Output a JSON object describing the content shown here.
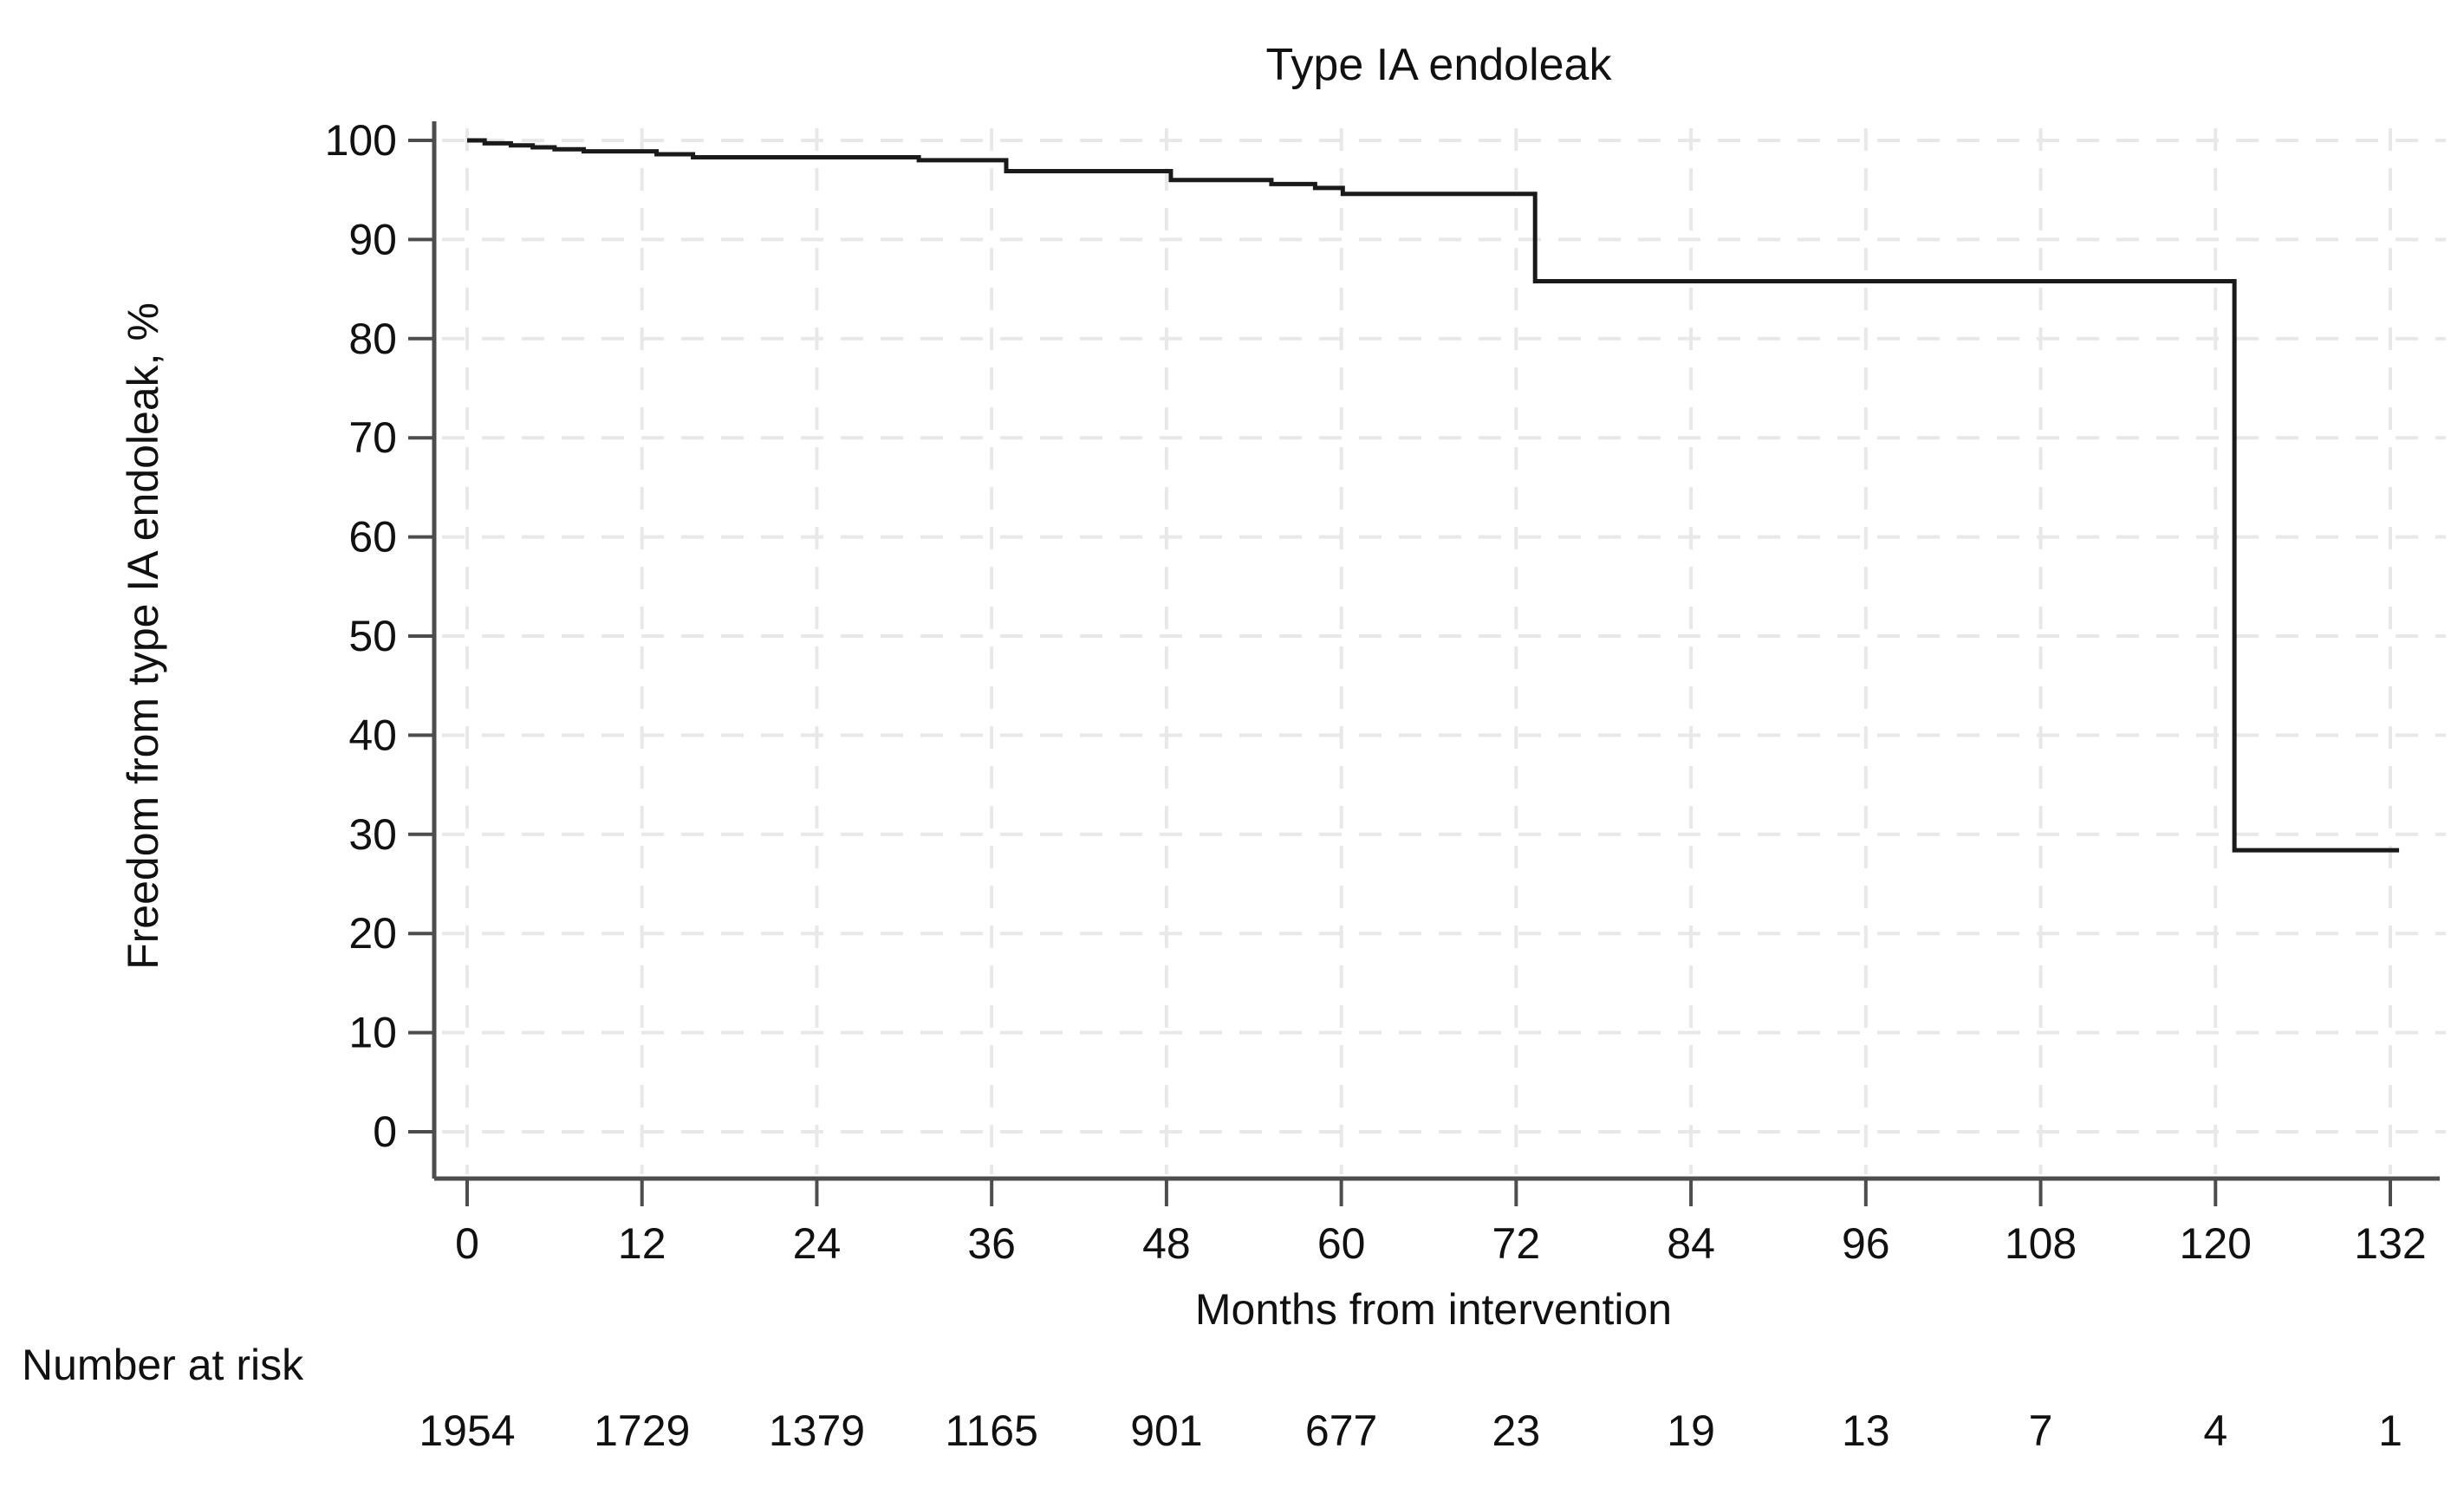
{
  "page": {
    "background": "#ffffff"
  },
  "chart_data": {
    "type": "line",
    "subtype": "kaplan-meier-step-curve",
    "title": "Type IA endoleak",
    "xlabel": "Months from intervention",
    "ylabel": "Freedom from type IA endoleak, %",
    "xlim": [
      0,
      132
    ],
    "ylim": [
      0,
      100
    ],
    "x_ticks": [
      0,
      12,
      24,
      36,
      48,
      60,
      72,
      84,
      96,
      108,
      120,
      132
    ],
    "y_ticks": [
      0,
      10,
      20,
      30,
      40,
      50,
      60,
      70,
      80,
      90,
      100
    ],
    "grid": {
      "show": true,
      "style": "dashed",
      "color": "#e8e8e8",
      "x_interval": 12,
      "y_interval": 10
    },
    "legend": {
      "show": false
    },
    "line_color": "#1a1a1a",
    "axis_color": "#4d4d4d",
    "series": [
      {
        "name": "Freedom from type IA endoleak",
        "step_points": [
          [
            0,
            100
          ],
          [
            1.2,
            99.7
          ],
          [
            3,
            99.5
          ],
          [
            4.5,
            99.3
          ],
          [
            6,
            99.1
          ],
          [
            8,
            98.9
          ],
          [
            13,
            98.6
          ],
          [
            15.5,
            98.3
          ],
          [
            31,
            98.0
          ],
          [
            37,
            96.9
          ],
          [
            48.3,
            96.0
          ],
          [
            55.2,
            95.6
          ],
          [
            58.2,
            95.2
          ],
          [
            60.1,
            94.6
          ],
          [
            73.3,
            85.8
          ],
          [
            121.3,
            28.4
          ]
        ],
        "end_x": 132.6
      }
    ],
    "risk_table": {
      "label": "Number at risk",
      "months": [
        0,
        12,
        24,
        36,
        48,
        60,
        72,
        84,
        96,
        108,
        120,
        132
      ],
      "values": [
        1954,
        1729,
        1379,
        1165,
        901,
        677,
        23,
        19,
        13,
        7,
        4,
        1
      ]
    }
  }
}
